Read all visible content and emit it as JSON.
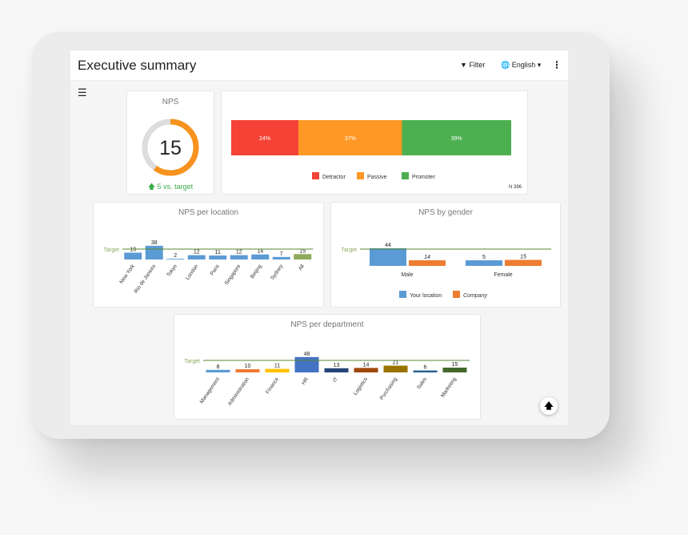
{
  "header": {
    "title": "Executive summary",
    "filter_label": "Filter",
    "language_label": "English"
  },
  "nps": {
    "title": "NPS",
    "score": "15",
    "delta": "5 vs. target",
    "ring_fraction": 0.6,
    "colors": {
      "ring": "#f7931e",
      "track": "#dddddd",
      "up": "#3aab47"
    }
  },
  "distribution": {
    "n_label": "N 396",
    "segments": [
      {
        "name": "Detractor",
        "label": "24%",
        "value": 24,
        "color": "#f44336"
      },
      {
        "name": "Passive",
        "label": "37%",
        "value": 37,
        "color": "#ff9824"
      },
      {
        "name": "Promoter",
        "label": "39%",
        "value": 39,
        "color": "#4caf50"
      }
    ]
  },
  "location": {
    "title": "NPS per location",
    "target_label": "Target",
    "categories": [
      "New York",
      "Rio de Janeiro",
      "Tokyo",
      "London",
      "Paris",
      "Singapore",
      "Beijing",
      "Sydney",
      "All"
    ],
    "values": [
      19,
      38,
      2,
      12,
      11,
      12,
      14,
      7,
      15
    ],
    "colors": {
      "bar": "#5b9bd5",
      "all": "#8faa5c",
      "target": "#5a8a2f"
    }
  },
  "gender": {
    "title": "NPS by gender",
    "target_label": "Target",
    "categories": [
      "Male",
      "Female"
    ],
    "series": [
      {
        "name": "Your location",
        "values": [
          44,
          5
        ],
        "color": "#5b9bd5"
      },
      {
        "name": "Company",
        "values": [
          14,
          15
        ],
        "color": "#ed7d31"
      }
    ]
  },
  "department": {
    "title": "NPS per department",
    "target_label": "Target",
    "categories": [
      "Management",
      "Administration",
      "Finance",
      "HR",
      "IT",
      "Logistics",
      "Purchasing",
      "Sales",
      "Marketing"
    ],
    "values": [
      8,
      10,
      11,
      48,
      13,
      14,
      21,
      6,
      15
    ],
    "colors": [
      "#5b9bd5",
      "#ed7d31",
      "#ffc000",
      "#4472c4",
      "#264478",
      "#9e480e",
      "#997300",
      "#255e91",
      "#43682b"
    ]
  },
  "chart_data": [
    {
      "type": "bar",
      "title": "NPS per location",
      "categories": [
        "New York",
        "Rio de Janeiro",
        "Tokyo",
        "London",
        "Paris",
        "Singapore",
        "Beijing",
        "Sydney",
        "All"
      ],
      "values": [
        19,
        38,
        2,
        12,
        11,
        12,
        14,
        7,
        15
      ]
    },
    {
      "type": "bar",
      "title": "NPS by gender",
      "categories": [
        "Male",
        "Female"
      ],
      "series": [
        {
          "name": "Your location",
          "values": [
            44,
            5
          ]
        },
        {
          "name": "Company",
          "values": [
            14,
            15
          ]
        }
      ]
    },
    {
      "type": "bar",
      "title": "NPS per department",
      "categories": [
        "Management",
        "Administration",
        "Finance",
        "HR",
        "IT",
        "Logistics",
        "Purchasing",
        "Sales",
        "Marketing"
      ],
      "values": [
        8,
        10,
        11,
        48,
        13,
        14,
        21,
        6,
        15
      ]
    },
    {
      "type": "bar",
      "categories": [
        "Detractor",
        "Passive",
        "Promoter"
      ],
      "values": [
        24,
        37,
        39
      ]
    }
  ]
}
